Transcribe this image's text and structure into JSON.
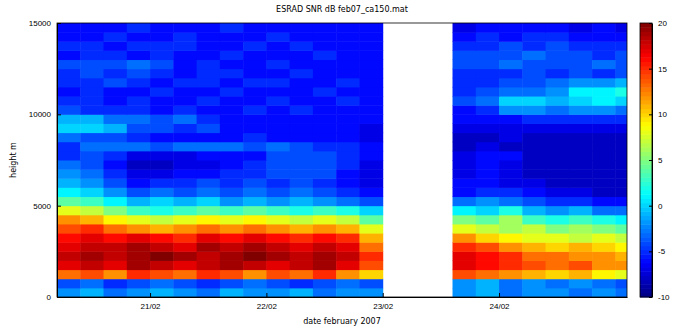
{
  "chart_data": {
    "type": "heatmap",
    "title": "ESRAD  SNR dB feb07_ca150.mat",
    "x_label": "date february 2007",
    "y_label": "height m",
    "x": [
      20.3,
      20.5,
      20.7,
      20.9,
      21.1,
      21.3,
      21.5,
      21.7,
      21.9,
      22.1,
      22.3,
      22.5,
      22.7,
      22.9,
      23.1,
      23.3,
      23.5,
      23.7,
      23.9,
      24.1,
      24.3,
      24.5,
      24.7,
      24.9,
      25.1
    ],
    "y": [
      250,
      750,
      1250,
      1750,
      2250,
      2750,
      3250,
      3750,
      4250,
      4750,
      5250,
      5750,
      6250,
      6750,
      7250,
      7750,
      8250,
      8750,
      9250,
      9750,
      10250,
      10750,
      11250,
      11750,
      12250,
      12750,
      13250,
      13750,
      14250,
      14750
    ],
    "values": [
      [
        -2,
        -1,
        -3,
        -2,
        -1,
        -2,
        -3,
        -1,
        -2,
        -2,
        -1,
        -3,
        -2,
        -2,
        null,
        null,
        null,
        -2,
        -1,
        -3,
        -2,
        -2,
        -3,
        -2,
        -3
      ],
      [
        -4,
        -3,
        -5,
        -4,
        -3,
        -4,
        -5,
        -4,
        -3,
        -4,
        -5,
        -4,
        -3,
        -4,
        null,
        null,
        null,
        -2,
        -1,
        -3,
        -2,
        -3,
        -2,
        -3,
        -4
      ],
      [
        13,
        14,
        12,
        15,
        14,
        13,
        15,
        14,
        12,
        14,
        13,
        15,
        12,
        10,
        null,
        null,
        null,
        14,
        13,
        12,
        11,
        10,
        11,
        9,
        8
      ],
      [
        17,
        18,
        17,
        19,
        18,
        17,
        18,
        19,
        18,
        17,
        18,
        19,
        17,
        14,
        null,
        null,
        null,
        17,
        16,
        15,
        14,
        13,
        14,
        12,
        12
      ],
      [
        18,
        19,
        18,
        19,
        20,
        19,
        18,
        19,
        20,
        19,
        18,
        19,
        18,
        15,
        null,
        null,
        null,
        17,
        16,
        15,
        13,
        13,
        12,
        12,
        11
      ],
      [
        17,
        18,
        18,
        19,
        18,
        17,
        19,
        18,
        19,
        18,
        17,
        18,
        17,
        13,
        null,
        null,
        null,
        15,
        14,
        12,
        11,
        10,
        11,
        10,
        9
      ],
      [
        16,
        17,
        16,
        17,
        16,
        15,
        17,
        16,
        17,
        16,
        15,
        16,
        15,
        11,
        null,
        null,
        null,
        12,
        10,
        9,
        8,
        8,
        7,
        8,
        7
      ],
      [
        14,
        15,
        13,
        12,
        11,
        12,
        13,
        12,
        13,
        12,
        11,
        12,
        11,
        8,
        null,
        null,
        null,
        8,
        7,
        6,
        7,
        5,
        6,
        5,
        4
      ],
      [
        12,
        11,
        9,
        8,
        7,
        8,
        9,
        8,
        9,
        8,
        7,
        8,
        7,
        4,
        null,
        null,
        null,
        5,
        4,
        6,
        3,
        2,
        3,
        2,
        1
      ],
      [
        8,
        7,
        5,
        3,
        2,
        3,
        4,
        3,
        4,
        3,
        2,
        3,
        2,
        0,
        null,
        null,
        null,
        1,
        0,
        2,
        -1,
        -2,
        -1,
        -3,
        -3
      ],
      [
        4,
        3,
        1,
        -1,
        0,
        -1,
        0,
        -2,
        -1,
        -2,
        -1,
        -2,
        -3,
        -4,
        null,
        null,
        null,
        -3,
        -2,
        -3,
        -4,
        -5,
        -5,
        -6,
        -6
      ],
      [
        1,
        0,
        -2,
        -4,
        -3,
        -4,
        -3,
        -4,
        -3,
        -4,
        -3,
        -4,
        -5,
        -6,
        null,
        null,
        null,
        -6,
        -5,
        -5,
        -6,
        -7,
        -7,
        -8,
        -8
      ],
      [
        -1,
        -2,
        -4,
        -6,
        -5,
        -5,
        -4,
        -5,
        -4,
        -5,
        -4,
        -5,
        -6,
        -7,
        null,
        null,
        null,
        -6,
        -6,
        -7,
        -7,
        -8,
        -8,
        -8,
        -8
      ],
      [
        -2,
        -3,
        -5,
        -7,
        -7,
        -6,
        -6,
        -5,
        -5,
        -4,
        -4,
        -4,
        -6,
        -7,
        null,
        null,
        null,
        -7,
        -6,
        -7,
        -8,
        -8,
        -8,
        -8,
        -8
      ],
      [
        -3,
        -4,
        -6,
        -8,
        -8,
        -7,
        -7,
        -6,
        -5,
        -4,
        -4,
        -4,
        -5,
        -7,
        null,
        null,
        null,
        -7,
        -6,
        -7,
        -8,
        -8,
        -8,
        -8,
        -8
      ],
      [
        -5,
        -4,
        -5,
        -7,
        -7,
        -7,
        -6,
        -6,
        -6,
        -4,
        -4,
        -4,
        -5,
        -6,
        null,
        null,
        null,
        -7,
        -6,
        -6,
        -8,
        -8,
        -8,
        -8,
        -8
      ],
      [
        -5,
        -3,
        -3,
        -3,
        -4,
        -3,
        -3,
        -3,
        -4,
        -3,
        -4,
        -5,
        -5,
        -6,
        null,
        null,
        null,
        -8,
        -7,
        -8,
        -8,
        -8,
        -8,
        -8,
        -8
      ],
      [
        -3,
        -4,
        -4,
        -5,
        -6,
        -6,
        -6,
        -6,
        -5,
        -6,
        -6,
        -6,
        -6,
        -7,
        null,
        null,
        null,
        -8,
        -8,
        -7,
        -8,
        -8,
        -8,
        -8,
        -8
      ],
      [
        0,
        0,
        -1,
        -4,
        -4,
        -5,
        -4,
        -6,
        -6,
        -6,
        -6,
        -6,
        -6,
        -7,
        null,
        null,
        null,
        -7,
        -7,
        -7,
        -7,
        -7,
        -7,
        -7,
        -7
      ],
      [
        -1,
        -1,
        -3,
        -3,
        -4,
        -3,
        -5,
        -6,
        -6,
        -6,
        -6,
        -6,
        -6,
        -6,
        null,
        null,
        null,
        -6,
        -6,
        -6,
        -5,
        -5,
        -5,
        -5,
        -5
      ],
      [
        -4,
        -5,
        -5,
        -5,
        -6,
        -5,
        -6,
        -6,
        -5,
        -6,
        -5,
        -6,
        -6,
        -6,
        null,
        null,
        null,
        -6,
        -5,
        -2,
        -2,
        -3,
        -2,
        -2,
        -3
      ],
      [
        -5,
        -5,
        -6,
        -5,
        -6,
        -6,
        -5,
        -6,
        -6,
        -5,
        -6,
        -6,
        -5,
        -6,
        null,
        null,
        null,
        -4,
        -3,
        0,
        0,
        -1,
        0,
        1,
        0
      ],
      [
        -6,
        -5,
        -6,
        -6,
        -5,
        -6,
        -6,
        -5,
        -6,
        -6,
        -6,
        -5,
        -6,
        -6,
        null,
        null,
        null,
        -5,
        -4,
        -3,
        -3,
        -2,
        1,
        1,
        2
      ],
      [
        -5,
        -5,
        -4,
        -5,
        -6,
        -5,
        -5,
        -6,
        -5,
        -5,
        -6,
        -6,
        -5,
        -6,
        null,
        null,
        null,
        -5,
        -5,
        -4,
        -4,
        -3,
        -2,
        -2,
        -1
      ],
      [
        -5,
        -4,
        -5,
        -4,
        -5,
        -6,
        -5,
        -5,
        -6,
        -6,
        -5,
        -6,
        -6,
        -6,
        null,
        null,
        null,
        -5,
        -5,
        -5,
        -4,
        -5,
        -4,
        -5,
        -4
      ],
      [
        -4,
        -4,
        -4,
        -3,
        -4,
        -6,
        -5,
        -6,
        -6,
        -5,
        -6,
        -6,
        -6,
        -6,
        null,
        null,
        null,
        -4,
        -4,
        -3,
        -4,
        -4,
        -4,
        -3,
        -4
      ],
      [
        -6,
        -5,
        -5,
        -6,
        -5,
        -6,
        -6,
        -5,
        -6,
        -6,
        -6,
        -5,
        -6,
        -6,
        null,
        null,
        null,
        -4,
        -4,
        -4,
        -3,
        -4,
        -4,
        -5,
        -4
      ],
      [
        -5,
        -5,
        -6,
        -5,
        -5,
        -5,
        -6,
        -6,
        -5,
        -6,
        -5,
        -6,
        -6,
        -6,
        null,
        null,
        null,
        -5,
        -5,
        -4,
        -5,
        -4,
        -5,
        -5,
        -5
      ],
      [
        -6,
        -6,
        -5,
        -6,
        -6,
        -5,
        -6,
        -6,
        -6,
        -5,
        -6,
        -6,
        -6,
        -6,
        null,
        null,
        null,
        -6,
        -5,
        -6,
        -5,
        -5,
        -6,
        -6,
        -6
      ],
      [
        -6,
        -6,
        -6,
        -5,
        -6,
        -6,
        -6,
        -5,
        -6,
        -6,
        -6,
        -6,
        -6,
        -6,
        null,
        null,
        null,
        -7,
        -6,
        -6,
        -6,
        -6,
        -7,
        -6,
        -7
      ]
    ],
    "xlim": [
      20.2,
      25.1
    ],
    "xticks": [
      {
        "value": 21,
        "label": "21/02"
      },
      {
        "value": 22,
        "label": "22/02"
      },
      {
        "value": 23,
        "label": "23/02"
      },
      {
        "value": 24,
        "label": "24/02"
      }
    ],
    "ylim": [
      0,
      15000
    ],
    "yticks": [
      0,
      5000,
      10000,
      15000
    ],
    "color_range": [
      -10,
      20
    ],
    "color_ticks": [
      -10,
      -5,
      0,
      5,
      10,
      15,
      20
    ]
  }
}
